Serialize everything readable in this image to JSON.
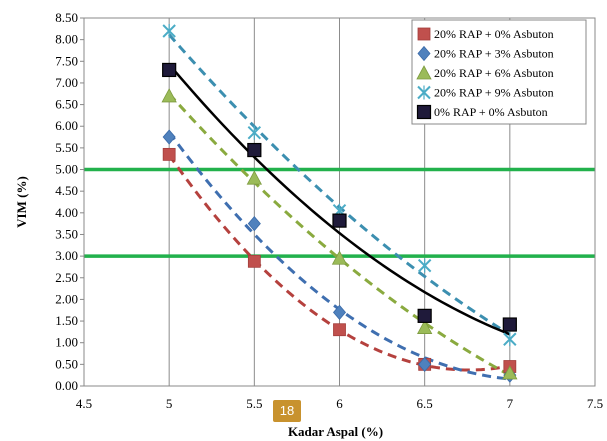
{
  "page_badge": "18",
  "chart_data": {
    "type": "scatter",
    "xlabel": "Kadar Aspal (%)",
    "ylabel": "VIM (%)",
    "xlim": [
      4.5,
      7.5
    ],
    "ylim": [
      0,
      8.5
    ],
    "x_ticks": [
      "4.5",
      "5",
      "5.5",
      "6",
      "6.5",
      "7",
      "7.5"
    ],
    "y_ticks": [
      "0.00",
      "0.50",
      "1.00",
      "1.50",
      "2.00",
      "2.50",
      "3.00",
      "3.50",
      "4.00",
      "4.50",
      "5.00",
      "5.50",
      "6.00",
      "6.50",
      "7.00",
      "7.50",
      "8.00",
      "8.50"
    ],
    "grid": "vertical",
    "legend_position": "top-right",
    "reference_lines": [
      {
        "y": 5.0,
        "color": "#22b14c"
      },
      {
        "y": 3.0,
        "color": "#22b14c"
      }
    ],
    "series": [
      {
        "name": "20% RAP + 0% Asbuton",
        "marker": "square",
        "color": "#c0504d",
        "trend_color": "#b5413e",
        "trend_style": "dashed",
        "x": [
          5,
          5.5,
          6,
          6.5,
          7
        ],
        "y": [
          5.35,
          2.88,
          1.3,
          0.5,
          0.45
        ]
      },
      {
        "name": "20% RAP + 3% Asbuton",
        "marker": "diamond",
        "color": "#4f81bd",
        "trend_color": "#3f6fb0",
        "trend_style": "dashed",
        "x": [
          5,
          5.5,
          6,
          6.5,
          7
        ],
        "y": [
          5.75,
          3.75,
          1.7,
          0.5,
          0.25
        ]
      },
      {
        "name": "20% RAP + 6% Asbuton",
        "marker": "triangle",
        "color": "#9bbb59",
        "trend_color": "#8aaa3f",
        "trend_style": "dashed",
        "x": [
          5,
          5.5,
          6,
          6.5,
          7
        ],
        "y": [
          6.7,
          4.8,
          2.95,
          1.35,
          0.3
        ]
      },
      {
        "name": "20% RAP + 9% Asbuton",
        "marker": "x",
        "color": "#4bacc6",
        "trend_color": "#3c8fb0",
        "trend_style": "dashed",
        "x": [
          5,
          5.5,
          6,
          6.5,
          7
        ],
        "y": [
          8.2,
          5.85,
          4.05,
          2.78,
          1.08
        ]
      },
      {
        "name": "0% RAP + 0% Asbuton",
        "marker": "square-dark",
        "color": "#1f1a3a",
        "trend_color": "#000000",
        "trend_style": "solid",
        "x": [
          5,
          5.5,
          6,
          6.5,
          7
        ],
        "y": [
          7.3,
          5.45,
          3.82,
          1.62,
          1.42
        ]
      }
    ]
  }
}
